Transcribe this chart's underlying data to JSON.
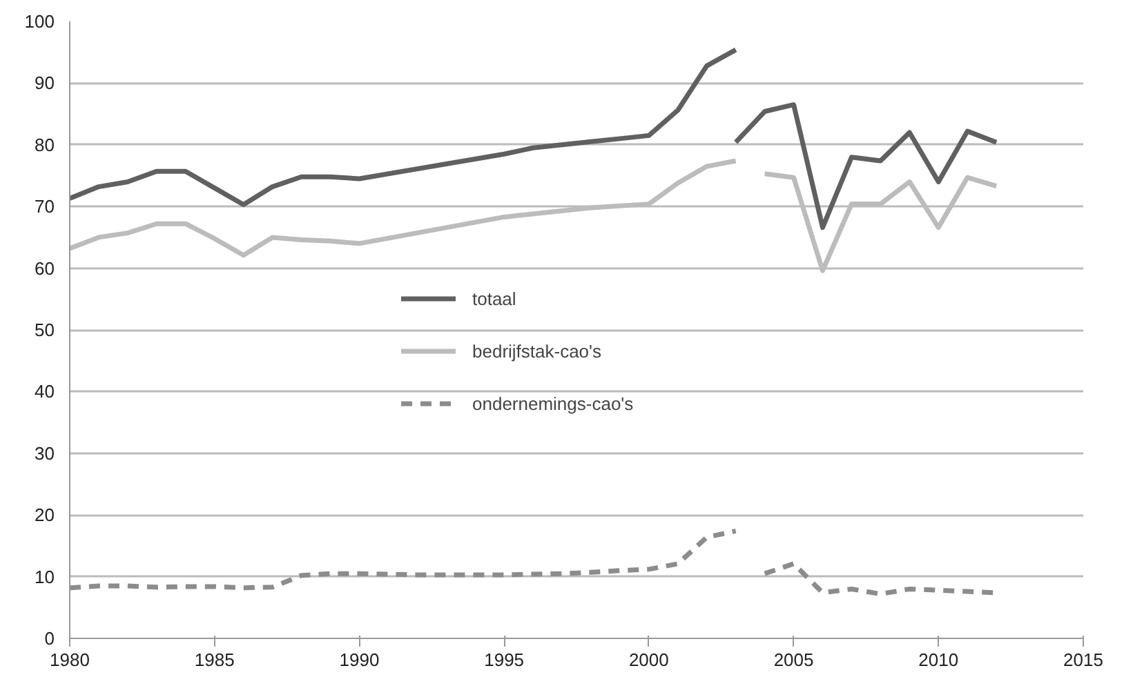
{
  "chart_data": {
    "type": "line",
    "xlim": [
      1980,
      2015
    ],
    "xticks": [
      1980,
      1985,
      1990,
      1995,
      2000,
      2005,
      2010,
      2015
    ],
    "ylim": [
      0,
      100
    ],
    "yticks": [
      0,
      10,
      20,
      30,
      40,
      50,
      60,
      70,
      80,
      90,
      100
    ],
    "grid": "y",
    "legend": "left",
    "marker": "none",
    "series": [
      {
        "name": "totaal",
        "color": "#606060",
        "line_style": "solid",
        "x": [
          1980,
          1981,
          1982,
          1983,
          1984,
          1985,
          1986,
          1987,
          1988,
          1989,
          1990,
          1995,
          1996,
          1997,
          1998,
          1999,
          2000,
          2001,
          2002,
          2003,
          null,
          2003,
          2004,
          2005,
          2006,
          2007,
          2008,
          2009,
          2010,
          2011,
          2012
        ],
        "values": [
          71.3,
          73.2,
          74,
          75.7,
          75.7,
          73,
          70.3,
          73.2,
          74.8,
          74.8,
          74.5,
          78.5,
          79.5,
          80,
          80.5,
          81,
          81.5,
          85.6,
          92.8,
          95.4,
          null,
          80.4,
          85.4,
          86.5,
          66.6,
          78,
          77.4,
          82,
          74,
          82.2,
          80.4
        ]
      },
      {
        "name": "bedrijfstak-cao's",
        "color": "#bcbcbc",
        "line_style": "solid",
        "x": [
          1980,
          1981,
          1982,
          1983,
          1984,
          1985,
          1986,
          1987,
          1988,
          1989,
          1990,
          1995,
          1998,
          2000,
          2001,
          2002,
          2003,
          null,
          2004,
          2005,
          2006,
          2007,
          2008,
          2009,
          2010,
          2011,
          2012
        ],
        "values": [
          63.2,
          65,
          65.7,
          67.2,
          67.2,
          64.8,
          62.1,
          65,
          64.6,
          64.4,
          64,
          68.3,
          69.8,
          70.4,
          73.8,
          76.5,
          77.4,
          null,
          75.3,
          74.7,
          59.6,
          70.4,
          70.4,
          74,
          66.6,
          74.7,
          73.3
        ]
      },
      {
        "name": "ondernemings-cao's",
        "color": "#8c8c8c",
        "line_style": "dashed",
        "x": [
          1980,
          1981,
          1982,
          1983,
          1984,
          1985,
          1986,
          1987,
          1988,
          1989,
          1990,
          1991,
          1992,
          1993,
          1994,
          1995,
          1996,
          1997,
          1998,
          1999,
          2000,
          2001,
          2002,
          2003,
          null,
          2004,
          2005,
          2006,
          2007,
          2008,
          2009,
          2010,
          2011,
          2012
        ],
        "values": [
          8.2,
          8.5,
          8.5,
          8.3,
          8.4,
          8.4,
          8.2,
          8.3,
          10.2,
          10.5,
          10.5,
          10.4,
          10.3,
          10.3,
          10.3,
          10.3,
          10.4,
          10.5,
          10.7,
          11,
          11.2,
          12.1,
          16.4,
          17.4,
          null,
          10.5,
          12.1,
          7.4,
          8,
          7.2,
          8,
          7.8,
          7.6,
          7.4
        ]
      }
    ]
  }
}
